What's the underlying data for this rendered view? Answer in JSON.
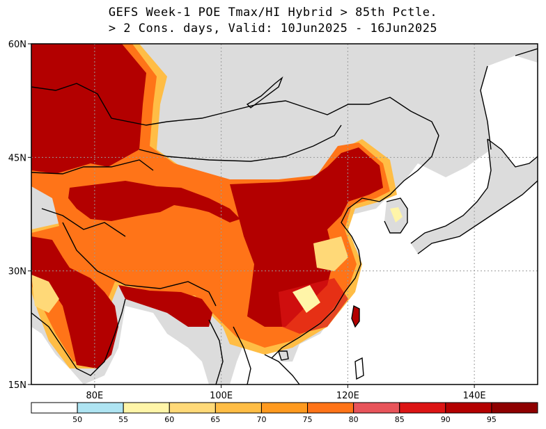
{
  "title": {
    "line1": "GEFS Week-1 POE Tmax/HI Hybrid > 85th Pctle.",
    "line2": "> 2 Cons. days, Valid: 10Jun2025 - 16Jun2025"
  },
  "axes": {
    "lat_labels": [
      "60N",
      "45N",
      "30N",
      "15N"
    ],
    "lon_labels": [
      "80E",
      "100E",
      "120E",
      "140E"
    ]
  },
  "colorbar": {
    "thresholds": [
      "50",
      "55",
      "60",
      "65",
      "70",
      "75",
      "80",
      "85",
      "90",
      "95"
    ],
    "colors": [
      "#ffffff",
      "#aee4f2",
      "#fff5a8",
      "#ffd978",
      "#ffbd45",
      "#ff9a1f",
      "#ff7418",
      "#e8545a",
      "#dc1414",
      "#b30000",
      "#8e0000"
    ]
  },
  "map_data": {
    "extent": {
      "lon": [
        70,
        150
      ],
      "lat": [
        15,
        60
      ]
    },
    "gridlines": "dotted every 20 degrees",
    "land_no_signal_color": "#dcdcdc"
  }
}
